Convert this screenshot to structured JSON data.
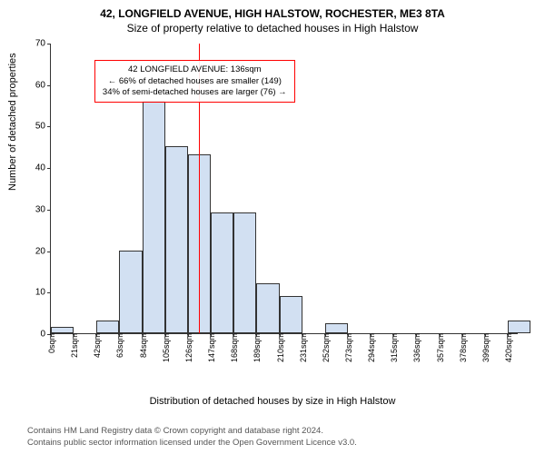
{
  "title_line1": "42, LONGFIELD AVENUE, HIGH HALSTOW, ROCHESTER, ME3 8TA",
  "title_line2": "Size of property relative to detached houses in High Halstow",
  "ylabel": "Number of detached properties",
  "xlabel": "Distribution of detached houses by size in High Halstow",
  "chart": {
    "type": "histogram",
    "ylim": [
      0,
      70
    ],
    "ytick_step": 10,
    "x_min_sqm": 0,
    "x_max_sqm": 430,
    "xtick_step_sqm": 21,
    "bin_width_sqm": 21,
    "bar_fill": "#d2e0f2",
    "bar_stroke": "#333333",
    "background": "#ffffff",
    "text_color": "#333333",
    "bins": [
      {
        "start": 0,
        "count": 1.5
      },
      {
        "start": 21,
        "count": 0
      },
      {
        "start": 42,
        "count": 3
      },
      {
        "start": 63,
        "count": 20
      },
      {
        "start": 84,
        "count": 56
      },
      {
        "start": 105,
        "count": 45
      },
      {
        "start": 126,
        "count": 43
      },
      {
        "start": 147,
        "count": 29
      },
      {
        "start": 168,
        "count": 29
      },
      {
        "start": 189,
        "count": 12
      },
      {
        "start": 210,
        "count": 9
      },
      {
        "start": 231,
        "count": 0
      },
      {
        "start": 252,
        "count": 2.5
      },
      {
        "start": 273,
        "count": 0
      },
      {
        "start": 294,
        "count": 0
      },
      {
        "start": 315,
        "count": 0
      },
      {
        "start": 336,
        "count": 0
      },
      {
        "start": 357,
        "count": 0
      },
      {
        "start": 378,
        "count": 0
      },
      {
        "start": 399,
        "count": 0
      },
      {
        "start": 420,
        "count": 3
      }
    ],
    "reference_line": {
      "sqm": 136,
      "color": "#ff0000"
    }
  },
  "annotation": {
    "line1": "42 LONGFIELD AVENUE: 136sqm",
    "line2": "← 66% of detached houses are smaller (149)",
    "line3": "34% of semi-detached houses are larger (76) →",
    "border_color": "#ff0000",
    "left_sqm": 40,
    "top_y": 66
  },
  "attribution": {
    "line1": "Contains HM Land Registry data © Crown copyright and database right 2024.",
    "line2": "Contains public sector information licensed under the Open Government Licence v3.0."
  }
}
